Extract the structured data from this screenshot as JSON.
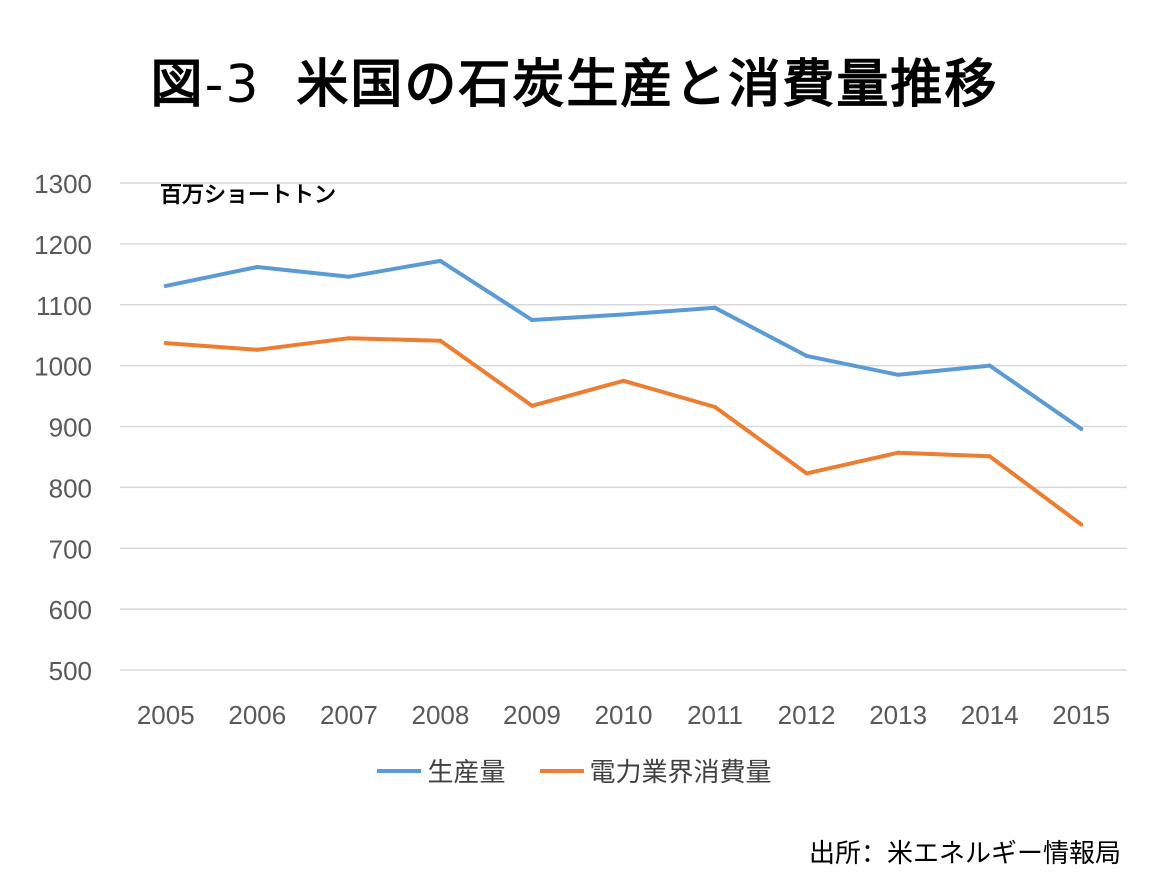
{
  "title": {
    "prefix": "図",
    "number": "-3",
    "main": "米国の石炭生産と消費量推移"
  },
  "unit_label": "百万ショートトン",
  "source": "出所：米エネルギー情報局",
  "colors": {
    "production": "#5B9BD5",
    "consumption": "#ED7D31",
    "grid": "#D9D9D9",
    "tick_text": "#595959"
  },
  "chart_data": {
    "type": "line",
    "title": "図-3 米国の石炭生産と消費量推移",
    "ylabel": "百万ショートトン",
    "xlabel": "",
    "ylim": [
      500,
      1300
    ],
    "yticks": [
      500,
      600,
      700,
      800,
      900,
      1000,
      1100,
      1200,
      1300
    ],
    "categories": [
      "2005",
      "2006",
      "2007",
      "2008",
      "2009",
      "2010",
      "2011",
      "2012",
      "2013",
      "2014",
      "2015"
    ],
    "grid": true,
    "legend_position": "bottom",
    "series": [
      {
        "name": "生産量",
        "color": "#5B9BD5",
        "values": [
          1131,
          1162,
          1146,
          1172,
          1075,
          1084,
          1095,
          1016,
          985,
          1000,
          896
        ]
      },
      {
        "name": "電力業界消費量",
        "color": "#ED7D31",
        "values": [
          1037,
          1026,
          1045,
          1041,
          934,
          975,
          932,
          823,
          857,
          851,
          739
        ]
      }
    ]
  }
}
